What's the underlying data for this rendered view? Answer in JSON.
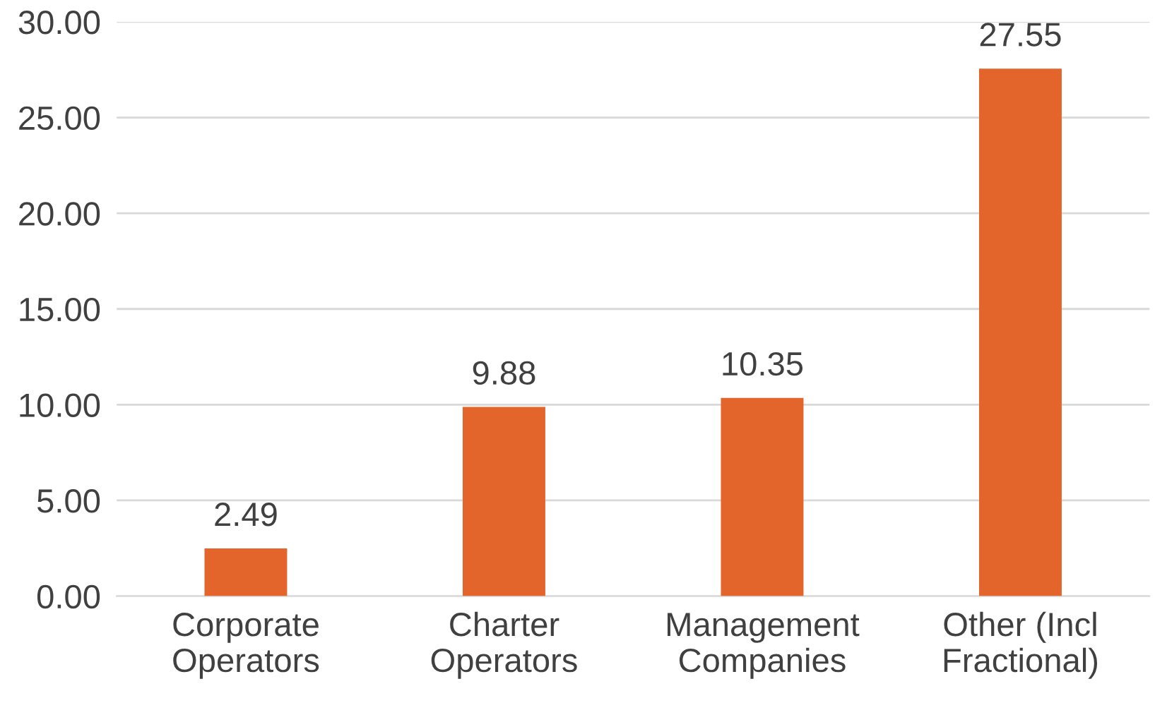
{
  "chart_data": {
    "type": "bar",
    "categories": [
      "Corporate\nOperators",
      "Charter\nOperators",
      "Management\nCompanies",
      "Other (Incl\nFractional)"
    ],
    "values": [
      2.49,
      9.88,
      10.35,
      27.55
    ],
    "color": "#e4652b",
    "ylim": [
      0,
      30
    ],
    "yticks": [
      {
        "value": 0,
        "label": "0.00"
      },
      {
        "value": 5,
        "label": "5.00"
      },
      {
        "value": 10,
        "label": "10.00"
      },
      {
        "value": 15,
        "label": "15.00"
      },
      {
        "value": 20,
        "label": "20.00"
      },
      {
        "value": 25,
        "label": "25.00"
      },
      {
        "value": 30,
        "label": "30.00"
      }
    ],
    "grid": "y",
    "data_labels": true
  }
}
